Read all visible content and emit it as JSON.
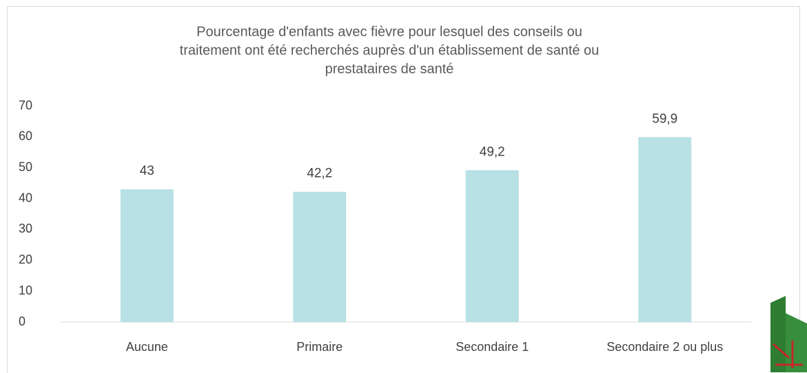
{
  "chart_data": {
    "type": "bar",
    "title": [
      "Pourcentage d'enfants avec  fièvre pour lesquel des conseils ou",
      "traitement ont été recherchés auprès d'un établissement de santé ou",
      "prestataires de santé"
    ],
    "categories": [
      "Aucune",
      "Primaire",
      "Secondaire 1",
      "Secondaire 2 ou plus"
    ],
    "values": [
      43,
      42.2,
      49.2,
      59.9
    ],
    "value_labels": [
      "43",
      "42,2",
      "49,2",
      "59,9"
    ],
    "color": "#b7e1e4",
    "ylim": [
      0,
      70
    ],
    "yticks": [
      0,
      10,
      20,
      30,
      40,
      50,
      60,
      70
    ],
    "grid": false
  }
}
